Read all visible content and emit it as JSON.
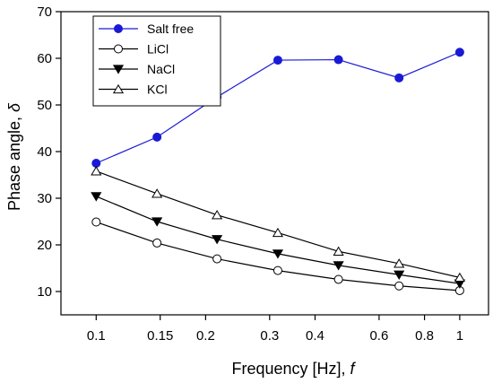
{
  "chart_data": {
    "type": "line",
    "x_scale": "log",
    "xlim": [
      0.08,
      1.2
    ],
    "ylim": [
      5,
      70
    ],
    "x": [
      0.1,
      0.147,
      0.215,
      0.316,
      0.464,
      0.681,
      1.0
    ],
    "x_ticks": [
      0.1,
      0.15,
      0.2,
      0.3,
      0.4,
      0.6,
      0.8,
      1
    ],
    "x_tick_labels": [
      "0.1",
      "0.15",
      "0.2",
      "0.3",
      "0.4",
      "0.6",
      "0.8",
      "1"
    ],
    "y_ticks": [
      10,
      20,
      30,
      40,
      50,
      60,
      70
    ],
    "y_tick_labels": [
      "10",
      "20",
      "30",
      "40",
      "50",
      "60",
      "70"
    ],
    "xlabel": "Frequency [Hz], ",
    "xlabel_var": "f",
    "ylabel": "Phase angle, ",
    "ylabel_var": "δ",
    "grid": false,
    "legend_position": "top-left",
    "series": [
      {
        "name": "Salt free",
        "values": [
          37.5,
          43.1,
          51.7,
          59.6,
          59.7,
          55.8,
          61.3
        ],
        "marker": "circle-filled",
        "color": "#1a1ad6"
      },
      {
        "name": "LiCl",
        "values": [
          24.9,
          20.4,
          17.0,
          14.5,
          12.6,
          11.2,
          10.2
        ],
        "marker": "circle-open",
        "color": "#000000"
      },
      {
        "name": "NaCl",
        "values": [
          30.4,
          25.0,
          21.2,
          18.1,
          15.6,
          13.6,
          11.7
        ],
        "marker": "triangle-down-filled",
        "color": "#000000"
      },
      {
        "name": "KCl",
        "values": [
          35.8,
          31.0,
          26.4,
          22.6,
          18.6,
          16.0,
          13.0
        ],
        "marker": "triangle-up-open",
        "color": "#000000"
      }
    ]
  }
}
